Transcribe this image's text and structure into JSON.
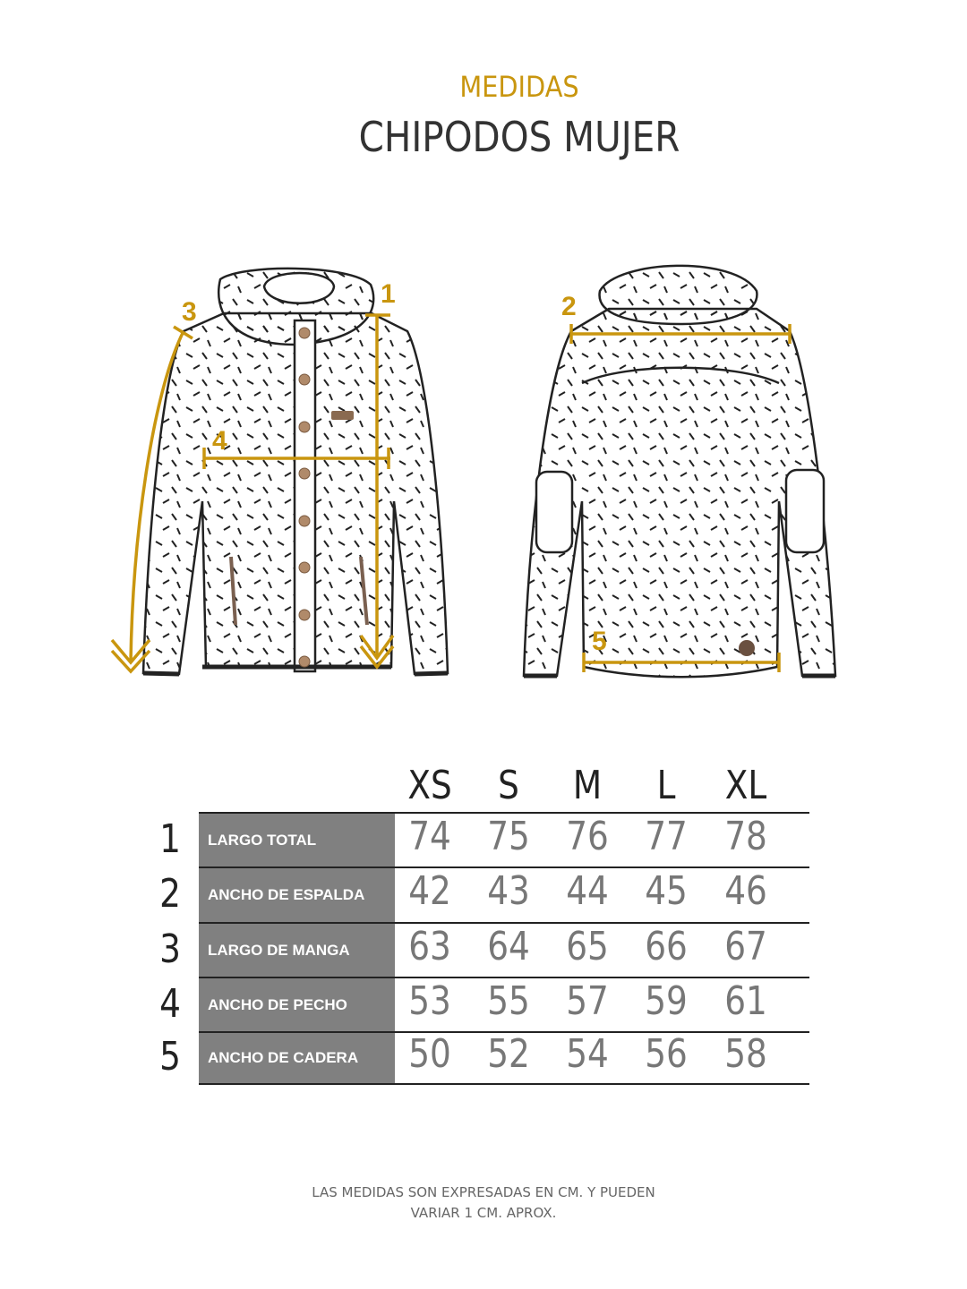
{
  "header": {
    "subtitle": "MEDIDAS",
    "title": "CHIPODOS MUJER"
  },
  "colors": {
    "accent": "#c9960f",
    "label_bg": "#808080",
    "value_text": "#777777"
  },
  "diagram": {
    "markers": [
      "1",
      "2",
      "3",
      "4",
      "5"
    ]
  },
  "table": {
    "sizes": [
      "XS",
      "S",
      "M",
      "L",
      "XL"
    ],
    "rows": [
      {
        "num": "1",
        "label": "LARGO TOTAL",
        "values": [
          "74",
          "75",
          "76",
          "77",
          "78"
        ]
      },
      {
        "num": "2",
        "label": "ANCHO DE ESPALDA",
        "values": [
          "42",
          "43",
          "44",
          "45",
          "46"
        ]
      },
      {
        "num": "3",
        "label": "LARGO DE MANGA",
        "values": [
          "63",
          "64",
          "65",
          "66",
          "67"
        ]
      },
      {
        "num": "4",
        "label": "ANCHO DE PECHO",
        "values": [
          "53",
          "55",
          "57",
          "59",
          "61"
        ]
      },
      {
        "num": "5",
        "label": "ANCHO DE CADERA",
        "values": [
          "50",
          "52",
          "54",
          "56",
          "58"
        ]
      }
    ]
  },
  "footer": {
    "line1": "LAS MEDIDAS SON EXPRESADAS EN CM. Y PUEDEN",
    "line2": "VARIAR 1 CM. APROX."
  }
}
